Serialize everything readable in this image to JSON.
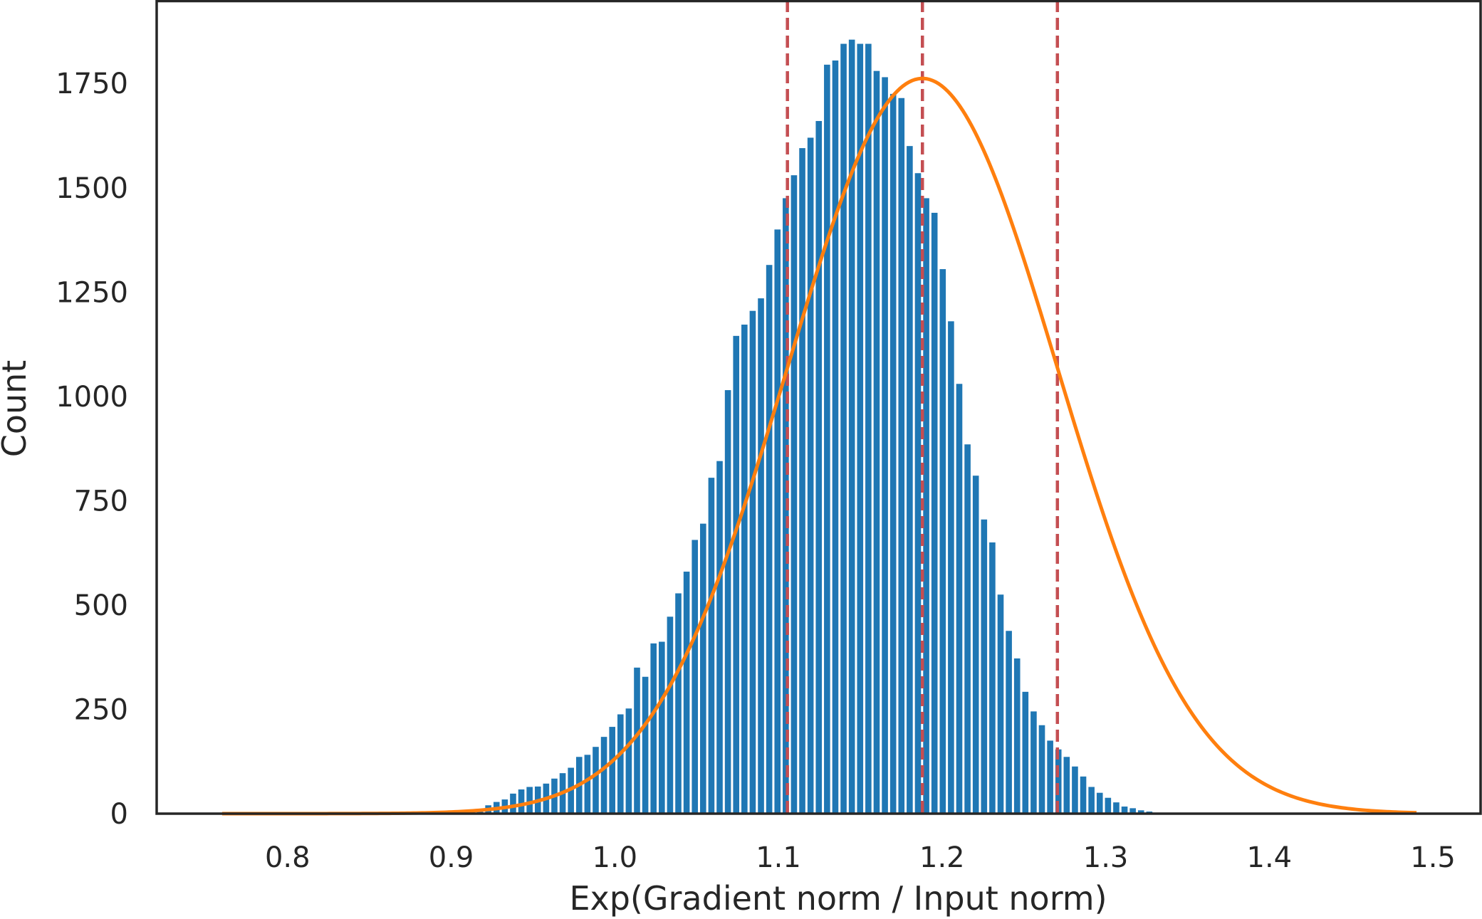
{
  "chart_data": {
    "type": "bar",
    "title": "",
    "xlabel": "Exp(Gradient norm / Input norm)",
    "ylabel": "Count",
    "xlim": [
      0.72,
      1.53
    ],
    "ylim": [
      0,
      1950
    ],
    "grid": false,
    "legend": "none",
    "xticks": [
      {
        "value": 0.8,
        "label": "0.8"
      },
      {
        "value": 0.9,
        "label": "0.9"
      },
      {
        "value": 1.0,
        "label": "1.0"
      },
      {
        "value": 1.1,
        "label": "1.1"
      },
      {
        "value": 1.2,
        "label": "1.2"
      },
      {
        "value": 1.3,
        "label": "1.3"
      },
      {
        "value": 1.4,
        "label": "1.4"
      },
      {
        "value": 1.5,
        "label": "1.5"
      }
    ],
    "yticks": [
      {
        "value": 0,
        "label": "0"
      },
      {
        "value": 250,
        "label": "250"
      },
      {
        "value": 500,
        "label": "500"
      },
      {
        "value": 750,
        "label": "750"
      },
      {
        "value": 1000,
        "label": "1000"
      },
      {
        "value": 1250,
        "label": "1250"
      },
      {
        "value": 1500,
        "label": "1500"
      },
      {
        "value": 1750,
        "label": "1750"
      }
    ],
    "histogram": {
      "bin_start": 0.905,
      "bin_width": 0.00505,
      "counts": [
        3,
        8,
        11,
        20,
        28,
        34,
        48,
        58,
        64,
        65,
        72,
        84,
        97,
        110,
        136,
        141,
        160,
        184,
        208,
        238,
        252,
        350,
        328,
        408,
        412,
        472,
        528,
        580,
        656,
        695,
        805,
        845,
        1015,
        1145,
        1172,
        1205,
        1235,
        1315,
        1400,
        1475,
        1530,
        1595,
        1620,
        1660,
        1795,
        1805,
        1845,
        1855,
        1845,
        1845,
        1780,
        1765,
        1725,
        1715,
        1600,
        1535,
        1475,
        1440,
        1305,
        1180,
        1030,
        885,
        810,
        705,
        650,
        525,
        438,
        372,
        292,
        245,
        212,
        175,
        154,
        136,
        113,
        89,
        64,
        50,
        38,
        27,
        17,
        13,
        8,
        5
      ],
      "color": "#1f77b4"
    },
    "fit_curve": {
      "type": "normal",
      "mean": 1.188,
      "std": 0.0825,
      "peak": 1762,
      "x_range": [
        0.76,
        1.49
      ],
      "color": "#ff7f0e"
    },
    "vlines": [
      {
        "x": 1.1055,
        "color": "#c44e52"
      },
      {
        "x": 1.188,
        "color": "#c44e52"
      },
      {
        "x": 1.2705,
        "color": "#c44e52"
      }
    ]
  }
}
